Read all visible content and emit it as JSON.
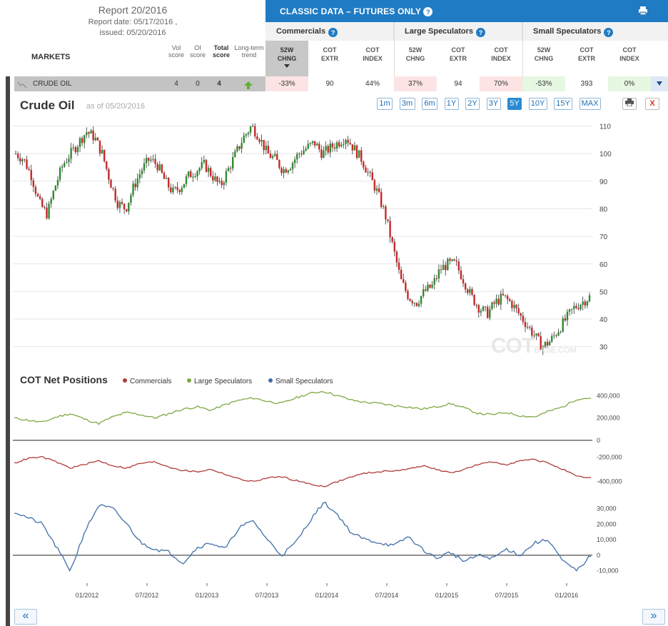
{
  "header": {
    "report_title": "Report 20/2016",
    "report_date": "Report date: 05/17/2016 ,",
    "issued": "issued: 05/20/2016",
    "markets_label": "MARKETS",
    "score_headers": [
      {
        "l1": "Vol",
        "l2": "score"
      },
      {
        "l1": "OI",
        "l2": "score"
      },
      {
        "l1": "Total",
        "l2": "score"
      },
      {
        "l1": "Long-term",
        "l2": "trend"
      }
    ]
  },
  "classic": {
    "title": "CLASSIC DATA – FUTURES ONLY",
    "help": "?",
    "print_icon": "print-icon",
    "groups": [
      {
        "name": "Commercials",
        "cols": [
          {
            "l1": "52W",
            "l2": "CHNG"
          },
          {
            "l1": "COT",
            "l2": "EXTR"
          },
          {
            "l1": "COT",
            "l2": "INDEX"
          }
        ]
      },
      {
        "name": "Large Speculators",
        "cols": [
          {
            "l1": "52W",
            "l2": "CHNG"
          },
          {
            "l1": "COT",
            "l2": "EXTR"
          },
          {
            "l1": "COT",
            "l2": "INDEX"
          }
        ]
      },
      {
        "name": "Small Speculators",
        "cols": [
          {
            "l1": "52W",
            "l2": "CHNG"
          },
          {
            "l1": "COT",
            "l2": "EXTR"
          },
          {
            "l1": "COT",
            "l2": "INDEX"
          }
        ]
      }
    ]
  },
  "row": {
    "market": "CRUDE OIL",
    "vol": "4",
    "oi": "0",
    "total": "4",
    "trend": "up-arrow-icon",
    "values": [
      "-33%",
      "90",
      "44%",
      "37%",
      "94",
      "70%",
      "-53%",
      "393",
      "0%"
    ],
    "value_colors": [
      "#fde4e4",
      "#ffffff",
      "#ffffff",
      "#fde4e4",
      "#ffffff",
      "#fde4e4",
      "#e6f7e2",
      "#ffffff",
      "#e6f7e2"
    ]
  },
  "chart": {
    "title": "Crude Oil",
    "as_of": "as of 05/20/2016",
    "ranges": [
      "1m",
      "3m",
      "6m",
      "1Y",
      "2Y",
      "3Y",
      "5Y",
      "10Y",
      "15Y",
      "MAX"
    ],
    "active_range": "5Y",
    "print_icon": "print-icon",
    "close_label": "X",
    "watermark": "COT",
    "watermark_small": "BASE.COM"
  },
  "cot": {
    "title": "COT Net Positions",
    "legend": [
      {
        "name": "Commercials",
        "color": "#b03a3a"
      },
      {
        "name": "Large Speculators",
        "color": "#7fa843"
      },
      {
        "name": "Small Speculators",
        "color": "#3f6fa8"
      }
    ]
  },
  "nav": {
    "prev": "«",
    "next": "»"
  },
  "chart_data": [
    {
      "type": "candlestick",
      "title": "Crude Oil",
      "ylim": [
        25,
        113
      ],
      "yticks": [
        30,
        40,
        50,
        60,
        70,
        80,
        90,
        100,
        110
      ],
      "x_ticks": [
        "01/2012",
        "07/2012",
        "01/2013",
        "07/2013",
        "01/2014",
        "07/2014",
        "01/2015",
        "07/2015",
        "01/2016"
      ],
      "series": [
        {
          "name": "Crude Oil",
          "close": [
            100,
            98,
            92,
            82,
            78,
            88,
            96,
            100,
            104,
            108,
            106,
            100,
            90,
            82,
            80,
            88,
            94,
            98,
            96,
            90,
            86,
            88,
            92,
            94,
            96,
            92,
            88,
            94,
            100,
            106,
            110,
            106,
            100,
            98,
            94,
            96,
            100,
            102,
            104,
            100,
            102,
            104,
            106,
            102,
            98,
            92,
            86,
            78,
            66,
            54,
            48,
            46,
            50,
            52,
            58,
            60,
            60,
            54,
            48,
            44,
            42,
            46,
            48,
            46,
            42,
            38,
            34,
            30,
            32,
            36,
            40,
            44,
            46,
            48
          ]
        }
      ]
    },
    {
      "type": "line",
      "title": "COT Net Positions",
      "x_ticks": [
        "01/2012",
        "07/2012",
        "01/2013",
        "07/2013",
        "01/2014",
        "07/2014",
        "01/2015",
        "07/2015",
        "01/2016"
      ],
      "panels": [
        {
          "yticks": [
            0,
            200000,
            400000
          ],
          "ytick_labels": [
            "0",
            "200,000",
            "400,000"
          ]
        },
        {
          "yticks": [
            -200000,
            -400000
          ],
          "ytick_labels": [
            "-200,000",
            "-400,000"
          ]
        },
        {
          "yticks": [
            30000,
            20000,
            10000,
            0,
            -10000
          ],
          "ytick_labels": [
            "30,000",
            "20,000",
            "10,000",
            "0",
            "-10,000"
          ]
        }
      ],
      "series": [
        {
          "name": "Large Speculators",
          "values": [
            200000,
            180000,
            160000,
            210000,
            240000,
            190000,
            150000,
            210000,
            250000,
            230000,
            200000,
            240000,
            280000,
            300000,
            270000,
            320000,
            360000,
            380000,
            350000,
            330000,
            380000,
            420000,
            440000,
            400000,
            360000,
            340000,
            330000,
            310000,
            300000,
            280000,
            300000,
            330000,
            290000,
            240000,
            230000,
            250000,
            220000,
            210000,
            260000,
            300000,
            370000,
            380000
          ]
        },
        {
          "name": "Commercials",
          "values": [
            -250000,
            -210000,
            -200000,
            -240000,
            -290000,
            -260000,
            -230000,
            -270000,
            -290000,
            -250000,
            -240000,
            -280000,
            -310000,
            -320000,
            -300000,
            -340000,
            -380000,
            -400000,
            -370000,
            -360000,
            -390000,
            -420000,
            -440000,
            -400000,
            -360000,
            -330000,
            -320000,
            -310000,
            -300000,
            -270000,
            -300000,
            -330000,
            -300000,
            -260000,
            -240000,
            -260000,
            -230000,
            -220000,
            -250000,
            -300000,
            -360000,
            -370000
          ]
        },
        {
          "name": "Small Speculators",
          "values": [
            28000,
            24000,
            20000,
            5000,
            -10000,
            15000,
            32000,
            30000,
            20000,
            8000,
            4000,
            2000,
            -5000,
            5000,
            8000,
            4000,
            18000,
            22000,
            10000,
            0,
            8000,
            22000,
            34000,
            26000,
            14000,
            10000,
            8000,
            6000,
            12000,
            4000,
            -2000,
            2000,
            -4000,
            0,
            -2000,
            4000,
            0,
            8000,
            10000,
            -4000,
            -10000,
            0
          ]
        }
      ]
    }
  ]
}
